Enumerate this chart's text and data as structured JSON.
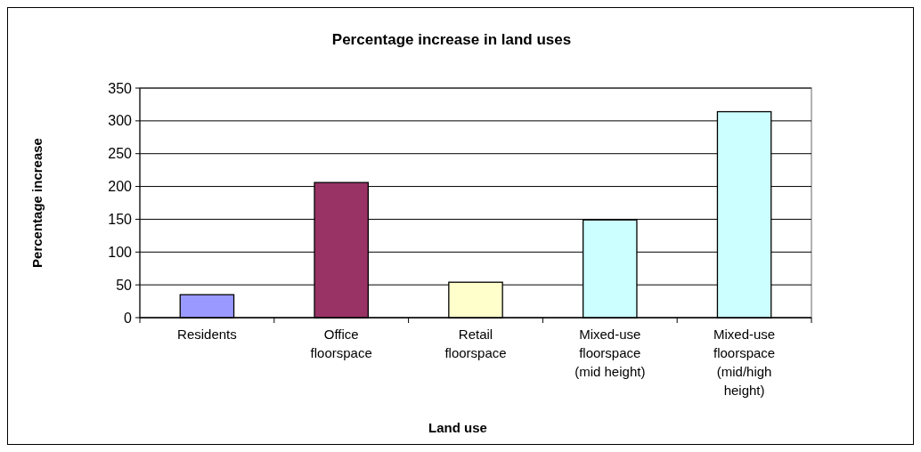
{
  "chart_data": {
    "type": "bar",
    "title": "Percentage increase in land uses",
    "xlabel": "Land use",
    "ylabel": "Percentage increase",
    "categories": [
      "Residents",
      "Office floorspace",
      "Retail floorspace",
      "Mixed-use floorspace (mid height)",
      "Mixed-use floorspace (mid/high height)"
    ],
    "values": [
      35,
      206,
      54,
      149,
      314
    ],
    "colors": [
      "#9999ff",
      "#993366",
      "#ffffcc",
      "#ccffff",
      "#ccffff"
    ],
    "ylim": [
      0,
      350
    ],
    "yticks": [
      0,
      50,
      100,
      150,
      200,
      250,
      300,
      350
    ],
    "grid": "y"
  }
}
